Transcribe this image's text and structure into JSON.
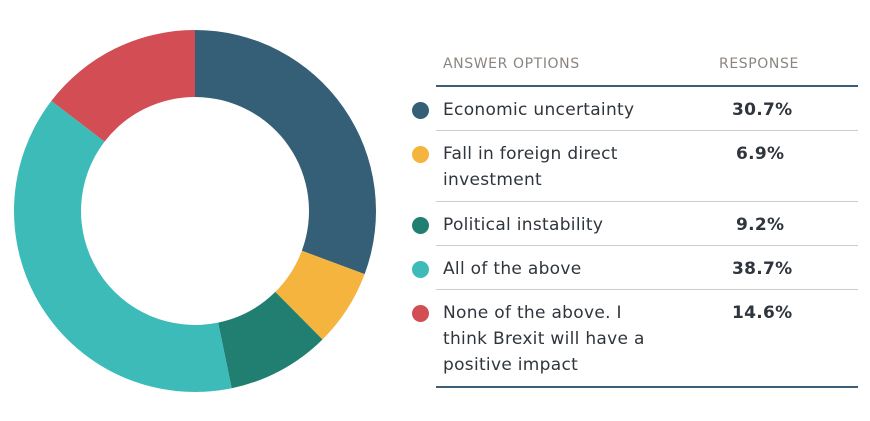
{
  "chart_data": {
    "type": "pie",
    "title": "",
    "table_headers": {
      "option": "ANSWER OPTIONS",
      "response": "RESPONSE"
    },
    "slices": [
      {
        "label": "Economic uncertainty",
        "value": 30.7,
        "display": "30.7%",
        "color": "#345f77"
      },
      {
        "label": "Fall in foreign direct investment",
        "value": 6.9,
        "display": "6.9%",
        "color": "#f5b43e"
      },
      {
        "label": "Political instability",
        "value": 9.2,
        "display": "9.2%",
        "color": "#217f71"
      },
      {
        "label": "All of the above",
        "value": 38.7,
        "display": "38.7%",
        "color": "#3dbbb8"
      },
      {
        "label": "None of the above. I think Brexit will have a positive impact",
        "value": 14.6,
        "display": "14.6%",
        "color": "#d24d54"
      }
    ]
  }
}
